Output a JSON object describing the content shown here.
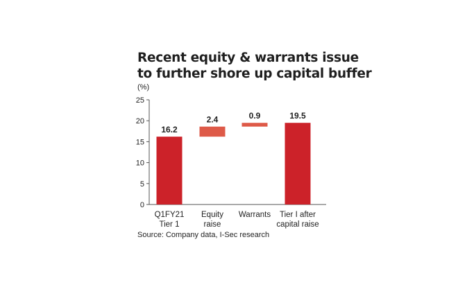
{
  "title_lines": [
    "Recent equity & warrants issue",
    "to further shore up capital buffer"
  ],
  "unit_label": "(%)",
  "source": "Source: Company data, I-Sec research",
  "colors": {
    "total": "#cc2229",
    "step": "#de5a48",
    "axis": "#555555"
  },
  "chart_data": {
    "type": "bar",
    "subtype": "waterfall",
    "title": "Recent equity & warrants issue to further shore up capital buffer",
    "ylabel": "(%)",
    "ylim": [
      0,
      25
    ],
    "yticks": [
      0,
      5,
      10,
      15,
      20,
      25
    ],
    "grid": false,
    "categories": [
      [
        "Q1FY21",
        "Tier 1"
      ],
      [
        "Equity",
        "raise"
      ],
      [
        "Warrants"
      ],
      [
        "Tier I after",
        "capital raise"
      ]
    ],
    "values": [
      16.2,
      2.4,
      0.9,
      19.5
    ],
    "labels": [
      "16.2",
      "2.4",
      "0.9",
      "19.5"
    ],
    "bar_kind": [
      "total",
      "step",
      "step",
      "total"
    ]
  }
}
